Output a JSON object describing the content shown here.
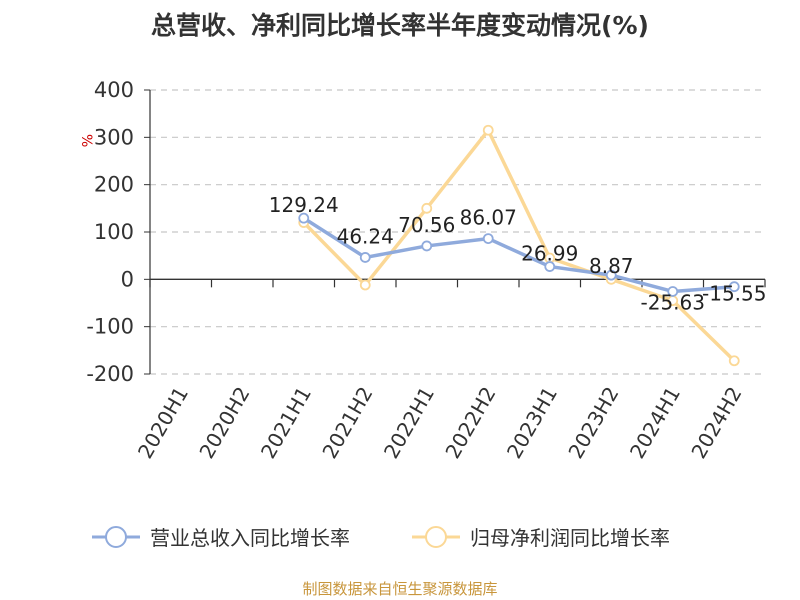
{
  "chart_data": {
    "type": "line",
    "title": "总营收、净利同比增长率半年度变动情况(%)",
    "ylabel": "%",
    "categories": [
      "2020H1",
      "2020H2",
      "2021H1",
      "2021H2",
      "2022H1",
      "2022H2",
      "2023H1",
      "2023H2",
      "2024H1",
      "2024H2"
    ],
    "ylim": [
      -200,
      400
    ],
    "yticks": [
      400,
      300,
      200,
      100,
      0,
      -100,
      -200
    ],
    "grid": true,
    "legend_position": "bottom",
    "series": [
      {
        "name": "营业总收入同比增长率",
        "color": "#8faadc",
        "values": [
          null,
          null,
          129.24,
          46.24,
          70.56,
          86.07,
          26.99,
          8.87,
          -25.63,
          -15.55
        ],
        "labels": [
          "",
          "",
          "129.24",
          "46.24",
          "70.56",
          "86.07",
          "26.99",
          "8.87",
          "-25.63",
          "-15.55"
        ]
      },
      {
        "name": "归母净利润同比增长率",
        "color": "#fbd896",
        "values": [
          null,
          null,
          120,
          -12,
          150,
          315,
          45,
          0,
          -45,
          -172
        ]
      }
    ]
  },
  "source": "制图数据来自恒生聚源数据库"
}
